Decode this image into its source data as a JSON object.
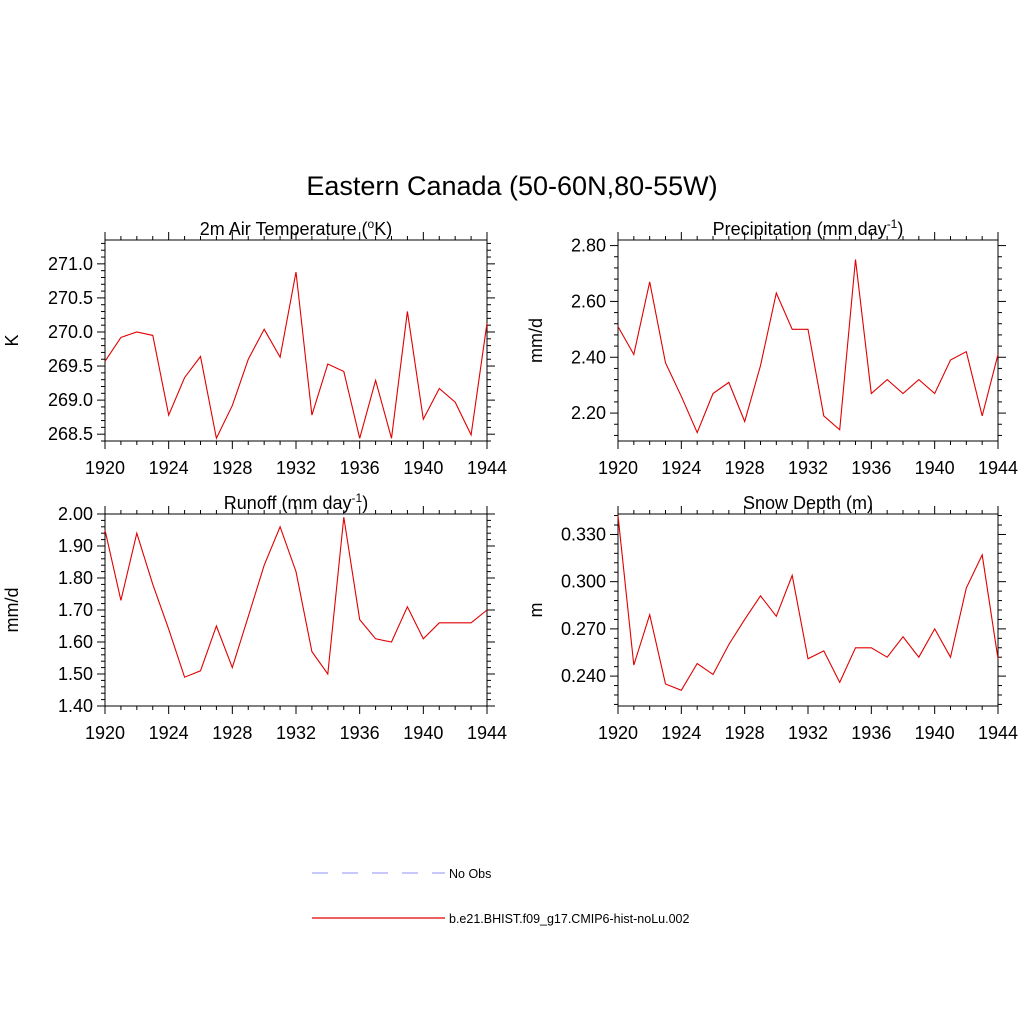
{
  "figure": {
    "title": "Eastern Canada (50-60N,80-55W)"
  },
  "colors": {
    "model_line": "#e00000",
    "obs_line": "#a8a8ff",
    "axis": "#000000"
  },
  "legend": {
    "placement": "bottom-center",
    "entries": [
      {
        "label": "No Obs",
        "style": "dashed",
        "color": "#a8a8ff"
      },
      {
        "label": "b.e21.BHIST.f09_g17.CMIP6-hist-noLu.002",
        "style": "solid",
        "color": "#e00000"
      }
    ]
  },
  "chart_data": [
    {
      "type": "line",
      "title": "2m Air Temperature (",
      "title_sup": "o",
      "title_tail": "K)",
      "ylabel": "K",
      "xlabel": "",
      "xlim": [
        1920,
        1944
      ],
      "ylim": [
        268.4,
        271.35
      ],
      "xticks": [
        1920,
        1924,
        1928,
        1932,
        1936,
        1940,
        1944
      ],
      "yticks": [
        268.5,
        269.0,
        269.5,
        270.0,
        270.5,
        271.0
      ],
      "ytick_labels": [
        "268.5",
        "269.0",
        "269.5",
        "270.0",
        "270.5",
        "271.0"
      ],
      "x": [
        1920,
        1921,
        1922,
        1923,
        1924,
        1925,
        1926,
        1927,
        1928,
        1929,
        1930,
        1931,
        1932,
        1933,
        1934,
        1935,
        1936,
        1937,
        1938,
        1939,
        1940,
        1941,
        1942,
        1943,
        1944
      ],
      "series": [
        {
          "values": [
            269.57,
            269.92,
            270.0,
            269.95,
            268.78,
            269.33,
            269.64,
            268.44,
            268.92,
            269.6,
            270.04,
            269.63,
            270.88,
            268.78,
            269.53,
            269.42,
            268.44,
            269.29,
            268.44,
            270.3,
            268.72,
            269.17,
            268.97,
            268.49,
            270.13
          ]
        }
      ]
    },
    {
      "type": "line",
      "title": "Precipitation (mm day",
      "title_sup": "-1",
      "title_tail": ")",
      "ylabel": "mm/d",
      "xlabel": "",
      "xlim": [
        1920,
        1944
      ],
      "ylim": [
        2.1,
        2.82
      ],
      "xticks": [
        1920,
        1924,
        1928,
        1932,
        1936,
        1940,
        1944
      ],
      "yticks": [
        2.2,
        2.4,
        2.6,
        2.8
      ],
      "ytick_labels": [
        "2.20",
        "2.40",
        "2.60",
        "2.80"
      ],
      "x": [
        1920,
        1921,
        1922,
        1923,
        1924,
        1925,
        1926,
        1927,
        1928,
        1929,
        1930,
        1931,
        1932,
        1933,
        1934,
        1935,
        1936,
        1937,
        1938,
        1939,
        1940,
        1941,
        1942,
        1943,
        1944
      ],
      "series": [
        {
          "values": [
            2.51,
            2.41,
            2.67,
            2.38,
            2.26,
            2.13,
            2.27,
            2.31,
            2.17,
            2.37,
            2.63,
            2.5,
            2.5,
            2.19,
            2.14,
            2.75,
            2.27,
            2.32,
            2.27,
            2.32,
            2.27,
            2.39,
            2.42,
            2.19,
            2.41
          ]
        }
      ]
    },
    {
      "type": "line",
      "title": "Runoff (mm day",
      "title_sup": "-1",
      "title_tail": ")",
      "ylabel": "mm/d",
      "xlabel": "",
      "xlim": [
        1920,
        1944
      ],
      "ylim": [
        1.4,
        2.0
      ],
      "xticks": [
        1920,
        1924,
        1928,
        1932,
        1936,
        1940,
        1944
      ],
      "yticks": [
        1.4,
        1.5,
        1.6,
        1.7,
        1.8,
        1.9,
        2.0
      ],
      "ytick_labels": [
        "1.40",
        "1.50",
        "1.60",
        "1.70",
        "1.80",
        "1.90",
        "2.00"
      ],
      "x": [
        1920,
        1921,
        1922,
        1923,
        1924,
        1925,
        1926,
        1927,
        1928,
        1929,
        1930,
        1931,
        1932,
        1933,
        1934,
        1935,
        1936,
        1937,
        1938,
        1939,
        1940,
        1941,
        1942,
        1943,
        1944
      ],
      "series": [
        {
          "values": [
            1.95,
            1.73,
            1.94,
            1.78,
            1.64,
            1.49,
            1.51,
            1.65,
            1.52,
            1.68,
            1.84,
            1.96,
            1.82,
            1.57,
            1.5,
            1.99,
            1.67,
            1.61,
            1.6,
            1.71,
            1.61,
            1.66,
            1.66,
            1.66,
            1.7
          ]
        }
      ]
    },
    {
      "type": "line",
      "title": "Snow Depth (m)",
      "title_sup": "",
      "title_tail": "",
      "ylabel": "m",
      "xlabel": "",
      "xlim": [
        1920,
        1944
      ],
      "ylim": [
        0.221,
        0.343
      ],
      "xticks": [
        1920,
        1924,
        1928,
        1932,
        1936,
        1940,
        1944
      ],
      "yticks": [
        0.24,
        0.27,
        0.3,
        0.33
      ],
      "ytick_labels": [
        "0.240",
        "0.270",
        "0.300",
        "0.330"
      ],
      "x": [
        1920,
        1921,
        1922,
        1923,
        1924,
        1925,
        1926,
        1927,
        1928,
        1929,
        1930,
        1931,
        1932,
        1933,
        1934,
        1935,
        1936,
        1937,
        1938,
        1939,
        1940,
        1941,
        1942,
        1943,
        1944
      ],
      "series": [
        {
          "values": [
            0.342,
            0.247,
            0.279,
            0.235,
            0.231,
            0.248,
            0.241,
            0.26,
            0.276,
            0.291,
            0.278,
            0.304,
            0.251,
            0.256,
            0.236,
            0.258,
            0.258,
            0.252,
            0.265,
            0.252,
            0.27,
            0.252,
            0.296,
            0.317,
            0.251
          ]
        }
      ]
    }
  ]
}
